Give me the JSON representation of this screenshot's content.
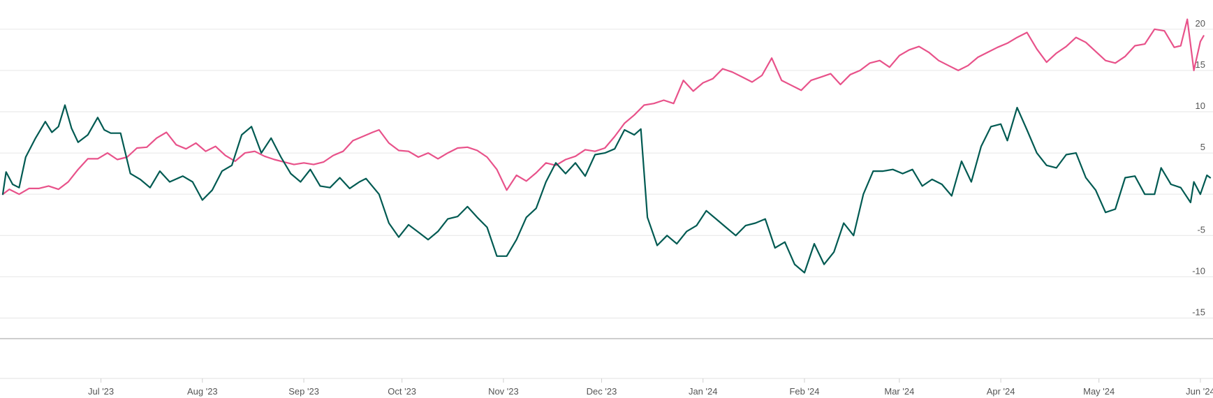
{
  "chart_data": {
    "type": "line",
    "title": "",
    "xlabel": "",
    "ylabel": "",
    "x_range": [
      "2023-06-01",
      "2024-06-04"
    ],
    "ylim": [
      -17.5,
      21
    ],
    "y_ticks": [
      20,
      15,
      10,
      5,
      0,
      -5,
      -10,
      -15
    ],
    "y_tick_labels": [
      "20",
      "15",
      "10",
      "5",
      "",
      "-5",
      "-10",
      "-15"
    ],
    "x_ticks": [
      {
        "date": "2023-07-01",
        "label": "Jul '23"
      },
      {
        "date": "2023-08-01",
        "label": "Aug '23"
      },
      {
        "date": "2023-09-01",
        "label": "Sep '23"
      },
      {
        "date": "2023-10-01",
        "label": "Oct '23"
      },
      {
        "date": "2023-11-01",
        "label": "Nov '23"
      },
      {
        "date": "2023-12-01",
        "label": "Dec '23"
      },
      {
        "date": "2024-01-01",
        "label": "Jan '24"
      },
      {
        "date": "2024-02-01",
        "label": "Feb '24"
      },
      {
        "date": "2024-03-01",
        "label": "Mar '24"
      },
      {
        "date": "2024-04-01",
        "label": "Apr '24"
      },
      {
        "date": "2024-05-01",
        "label": "May '24"
      },
      {
        "date": "2024-06-01",
        "label": "Jun '24"
      }
    ],
    "grid": true,
    "legend": "none",
    "series": [
      {
        "color": "#e8528a",
        "points": [
          [
            "2023-06-01",
            0.0
          ],
          [
            "2023-06-03",
            0.6
          ],
          [
            "2023-06-06",
            0.0
          ],
          [
            "2023-06-09",
            0.7
          ],
          [
            "2023-06-12",
            0.7
          ],
          [
            "2023-06-15",
            1.0
          ],
          [
            "2023-06-18",
            0.6
          ],
          [
            "2023-06-21",
            1.5
          ],
          [
            "2023-06-24",
            3.0
          ],
          [
            "2023-06-27",
            4.3
          ],
          [
            "2023-06-30",
            4.3
          ],
          [
            "2023-07-03",
            5.0
          ],
          [
            "2023-07-06",
            4.2
          ],
          [
            "2023-07-09",
            4.5
          ],
          [
            "2023-07-12",
            5.6
          ],
          [
            "2023-07-15",
            5.7
          ],
          [
            "2023-07-18",
            6.8
          ],
          [
            "2023-07-21",
            7.5
          ],
          [
            "2023-07-24",
            6.0
          ],
          [
            "2023-07-27",
            5.5
          ],
          [
            "2023-07-30",
            6.2
          ],
          [
            "2023-08-02",
            5.2
          ],
          [
            "2023-08-05",
            5.8
          ],
          [
            "2023-08-08",
            4.7
          ],
          [
            "2023-08-11",
            4.0
          ],
          [
            "2023-08-14",
            5.0
          ],
          [
            "2023-08-17",
            5.2
          ],
          [
            "2023-08-20",
            4.6
          ],
          [
            "2023-08-23",
            4.2
          ],
          [
            "2023-08-26",
            3.9
          ],
          [
            "2023-08-29",
            3.6
          ],
          [
            "2023-09-01",
            3.8
          ],
          [
            "2023-09-04",
            3.6
          ],
          [
            "2023-09-07",
            3.9
          ],
          [
            "2023-09-10",
            4.7
          ],
          [
            "2023-09-13",
            5.2
          ],
          [
            "2023-09-16",
            6.5
          ],
          [
            "2023-09-19",
            7.0
          ],
          [
            "2023-09-22",
            7.5
          ],
          [
            "2023-09-24",
            7.8
          ],
          [
            "2023-09-27",
            6.2
          ],
          [
            "2023-09-30",
            5.3
          ],
          [
            "2023-10-03",
            5.2
          ],
          [
            "2023-10-06",
            4.5
          ],
          [
            "2023-10-09",
            5.0
          ],
          [
            "2023-10-12",
            4.3
          ],
          [
            "2023-10-15",
            5.0
          ],
          [
            "2023-10-18",
            5.6
          ],
          [
            "2023-10-21",
            5.7
          ],
          [
            "2023-10-24",
            5.3
          ],
          [
            "2023-10-27",
            4.5
          ],
          [
            "2023-10-30",
            3.0
          ],
          [
            "2023-11-02",
            0.5
          ],
          [
            "2023-11-05",
            2.3
          ],
          [
            "2023-11-08",
            1.6
          ],
          [
            "2023-11-11",
            2.6
          ],
          [
            "2023-11-14",
            3.8
          ],
          [
            "2023-11-17",
            3.5
          ],
          [
            "2023-11-20",
            4.2
          ],
          [
            "2023-11-23",
            4.6
          ],
          [
            "2023-11-26",
            5.4
          ],
          [
            "2023-11-29",
            5.2
          ],
          [
            "2023-12-02",
            5.6
          ],
          [
            "2023-12-05",
            7.0
          ],
          [
            "2023-12-08",
            8.6
          ],
          [
            "2023-12-11",
            9.6
          ],
          [
            "2023-12-14",
            10.8
          ],
          [
            "2023-12-17",
            11.0
          ],
          [
            "2023-12-20",
            11.4
          ],
          [
            "2023-12-23",
            11.0
          ],
          [
            "2023-12-26",
            13.8
          ],
          [
            "2023-12-29",
            12.5
          ],
          [
            "2024-01-01",
            13.5
          ],
          [
            "2024-01-04",
            14.0
          ],
          [
            "2024-01-07",
            15.2
          ],
          [
            "2024-01-10",
            14.8
          ],
          [
            "2024-01-13",
            14.2
          ],
          [
            "2024-01-16",
            13.6
          ],
          [
            "2024-01-19",
            14.4
          ],
          [
            "2024-01-22",
            16.5
          ],
          [
            "2024-01-25",
            13.8
          ],
          [
            "2024-01-28",
            13.2
          ],
          [
            "2024-01-31",
            12.6
          ],
          [
            "2024-02-03",
            13.8
          ],
          [
            "2024-02-06",
            14.2
          ],
          [
            "2024-02-09",
            14.6
          ],
          [
            "2024-02-12",
            13.3
          ],
          [
            "2024-02-15",
            14.5
          ],
          [
            "2024-02-18",
            15.0
          ],
          [
            "2024-02-21",
            15.9
          ],
          [
            "2024-02-24",
            16.2
          ],
          [
            "2024-02-27",
            15.4
          ],
          [
            "2024-03-01",
            16.8
          ],
          [
            "2024-03-04",
            17.5
          ],
          [
            "2024-03-07",
            17.9
          ],
          [
            "2024-03-10",
            17.2
          ],
          [
            "2024-03-13",
            16.2
          ],
          [
            "2024-03-16",
            15.6
          ],
          [
            "2024-03-19",
            15.0
          ],
          [
            "2024-03-22",
            15.6
          ],
          [
            "2024-03-25",
            16.6
          ],
          [
            "2024-03-28",
            17.2
          ],
          [
            "2024-03-31",
            17.8
          ],
          [
            "2024-04-03",
            18.3
          ],
          [
            "2024-04-06",
            19.0
          ],
          [
            "2024-04-09",
            19.6
          ],
          [
            "2024-04-12",
            17.6
          ],
          [
            "2024-04-15",
            16.0
          ],
          [
            "2024-04-18",
            17.1
          ],
          [
            "2024-04-21",
            17.9
          ],
          [
            "2024-04-24",
            19.0
          ],
          [
            "2024-04-27",
            18.4
          ],
          [
            "2024-04-30",
            17.3
          ],
          [
            "2024-05-03",
            16.2
          ],
          [
            "2024-05-06",
            15.9
          ],
          [
            "2024-05-09",
            16.7
          ],
          [
            "2024-05-12",
            18.0
          ],
          [
            "2024-05-15",
            18.2
          ],
          [
            "2024-05-18",
            20.0
          ],
          [
            "2024-05-21",
            19.8
          ],
          [
            "2024-05-24",
            17.8
          ],
          [
            "2024-05-26",
            18.0
          ],
          [
            "2024-05-28",
            21.2
          ],
          [
            "2024-05-30",
            15.0
          ],
          [
            "2024-06-01",
            18.5
          ],
          [
            "2024-06-02",
            19.2
          ]
        ]
      },
      {
        "color": "#005a52",
        "points": [
          [
            "2023-06-01",
            0.0
          ],
          [
            "2023-06-02",
            2.7
          ],
          [
            "2023-06-04",
            1.2
          ],
          [
            "2023-06-06",
            0.8
          ],
          [
            "2023-06-08",
            4.5
          ],
          [
            "2023-06-11",
            6.8
          ],
          [
            "2023-06-14",
            8.8
          ],
          [
            "2023-06-16",
            7.5
          ],
          [
            "2023-06-18",
            8.2
          ],
          [
            "2023-06-20",
            10.8
          ],
          [
            "2023-06-22",
            8.0
          ],
          [
            "2023-06-24",
            6.3
          ],
          [
            "2023-06-27",
            7.2
          ],
          [
            "2023-06-30",
            9.3
          ],
          [
            "2023-07-02",
            7.8
          ],
          [
            "2023-07-04",
            7.4
          ],
          [
            "2023-07-07",
            7.4
          ],
          [
            "2023-07-10",
            2.5
          ],
          [
            "2023-07-13",
            1.8
          ],
          [
            "2023-07-16",
            0.8
          ],
          [
            "2023-07-19",
            2.8
          ],
          [
            "2023-07-22",
            1.5
          ],
          [
            "2023-07-26",
            2.2
          ],
          [
            "2023-07-29",
            1.5
          ],
          [
            "2023-08-01",
            -0.7
          ],
          [
            "2023-08-04",
            0.5
          ],
          [
            "2023-08-07",
            2.8
          ],
          [
            "2023-08-10",
            3.5
          ],
          [
            "2023-08-13",
            7.2
          ],
          [
            "2023-08-16",
            8.2
          ],
          [
            "2023-08-19",
            5.0
          ],
          [
            "2023-08-22",
            6.8
          ],
          [
            "2023-08-25",
            4.5
          ],
          [
            "2023-08-28",
            2.5
          ],
          [
            "2023-08-31",
            1.5
          ],
          [
            "2023-09-03",
            3.0
          ],
          [
            "2023-09-06",
            1.0
          ],
          [
            "2023-09-09",
            0.8
          ],
          [
            "2023-09-12",
            2.0
          ],
          [
            "2023-09-15",
            0.7
          ],
          [
            "2023-09-18",
            1.5
          ],
          [
            "2023-09-20",
            1.9
          ],
          [
            "2023-09-24",
            0.0
          ],
          [
            "2023-09-27",
            -3.5
          ],
          [
            "2023-09-30",
            -5.2
          ],
          [
            "2023-10-03",
            -3.7
          ],
          [
            "2023-10-06",
            -4.6
          ],
          [
            "2023-10-09",
            -5.5
          ],
          [
            "2023-10-12",
            -4.5
          ],
          [
            "2023-10-15",
            -3.0
          ],
          [
            "2023-10-18",
            -2.7
          ],
          [
            "2023-10-21",
            -1.5
          ],
          [
            "2023-10-24",
            -2.8
          ],
          [
            "2023-10-27",
            -4.0
          ],
          [
            "2023-10-30",
            -7.5
          ],
          [
            "2023-11-02",
            -7.5
          ],
          [
            "2023-11-05",
            -5.5
          ],
          [
            "2023-11-08",
            -2.8
          ],
          [
            "2023-11-11",
            -1.7
          ],
          [
            "2023-11-14",
            1.5
          ],
          [
            "2023-11-17",
            3.8
          ],
          [
            "2023-11-20",
            2.5
          ],
          [
            "2023-11-23",
            3.8
          ],
          [
            "2023-11-26",
            2.2
          ],
          [
            "2023-11-29",
            4.8
          ],
          [
            "2023-12-02",
            5.0
          ],
          [
            "2023-12-05",
            5.5
          ],
          [
            "2023-12-08",
            7.8
          ],
          [
            "2023-12-11",
            7.2
          ],
          [
            "2023-12-13",
            7.9
          ],
          [
            "2023-12-15",
            -2.8
          ],
          [
            "2023-12-18",
            -6.2
          ],
          [
            "2023-12-21",
            -5.0
          ],
          [
            "2023-12-24",
            -6.0
          ],
          [
            "2023-12-27",
            -4.5
          ],
          [
            "2023-12-30",
            -3.8
          ],
          [
            "2024-01-02",
            -2.0
          ],
          [
            "2024-01-05",
            -3.0
          ],
          [
            "2024-01-08",
            -4.0
          ],
          [
            "2024-01-11",
            -5.0
          ],
          [
            "2024-01-14",
            -3.8
          ],
          [
            "2024-01-17",
            -3.5
          ],
          [
            "2024-01-20",
            -3.0
          ],
          [
            "2024-01-23",
            -6.5
          ],
          [
            "2024-01-26",
            -5.8
          ],
          [
            "2024-01-29",
            -8.5
          ],
          [
            "2024-02-01",
            -9.5
          ],
          [
            "2024-02-04",
            -6.0
          ],
          [
            "2024-02-07",
            -8.5
          ],
          [
            "2024-02-10",
            -7.0
          ],
          [
            "2024-02-13",
            -3.5
          ],
          [
            "2024-02-16",
            -5.0
          ],
          [
            "2024-02-19",
            0.0
          ],
          [
            "2024-02-22",
            2.8
          ],
          [
            "2024-02-25",
            2.8
          ],
          [
            "2024-02-28",
            3.0
          ],
          [
            "2024-03-02",
            2.5
          ],
          [
            "2024-03-05",
            3.0
          ],
          [
            "2024-03-08",
            1.0
          ],
          [
            "2024-03-11",
            1.8
          ],
          [
            "2024-03-14",
            1.2
          ],
          [
            "2024-03-17",
            -0.2
          ],
          [
            "2024-03-20",
            4.0
          ],
          [
            "2024-03-23",
            1.5
          ],
          [
            "2024-03-26",
            5.8
          ],
          [
            "2024-03-29",
            8.2
          ],
          [
            "2024-04-01",
            8.5
          ],
          [
            "2024-04-03",
            6.5
          ],
          [
            "2024-04-06",
            10.5
          ],
          [
            "2024-04-09",
            7.8
          ],
          [
            "2024-04-12",
            5.0
          ],
          [
            "2024-04-15",
            3.5
          ],
          [
            "2024-04-18",
            3.2
          ],
          [
            "2024-04-21",
            4.8
          ],
          [
            "2024-04-24",
            5.0
          ],
          [
            "2024-04-27",
            2.0
          ],
          [
            "2024-04-30",
            0.5
          ],
          [
            "2024-05-03",
            -2.2
          ],
          [
            "2024-05-06",
            -1.8
          ],
          [
            "2024-05-09",
            2.0
          ],
          [
            "2024-05-12",
            2.2
          ],
          [
            "2024-05-15",
            0.0
          ],
          [
            "2024-05-18",
            0.0
          ],
          [
            "2024-05-20",
            3.2
          ],
          [
            "2024-05-23",
            1.2
          ],
          [
            "2024-05-26",
            0.8
          ],
          [
            "2024-05-29",
            -1.0
          ],
          [
            "2024-05-30",
            1.5
          ],
          [
            "2024-06-01",
            0.0
          ],
          [
            "2024-06-03",
            2.3
          ],
          [
            "2024-06-04",
            2.0
          ]
        ]
      }
    ]
  }
}
